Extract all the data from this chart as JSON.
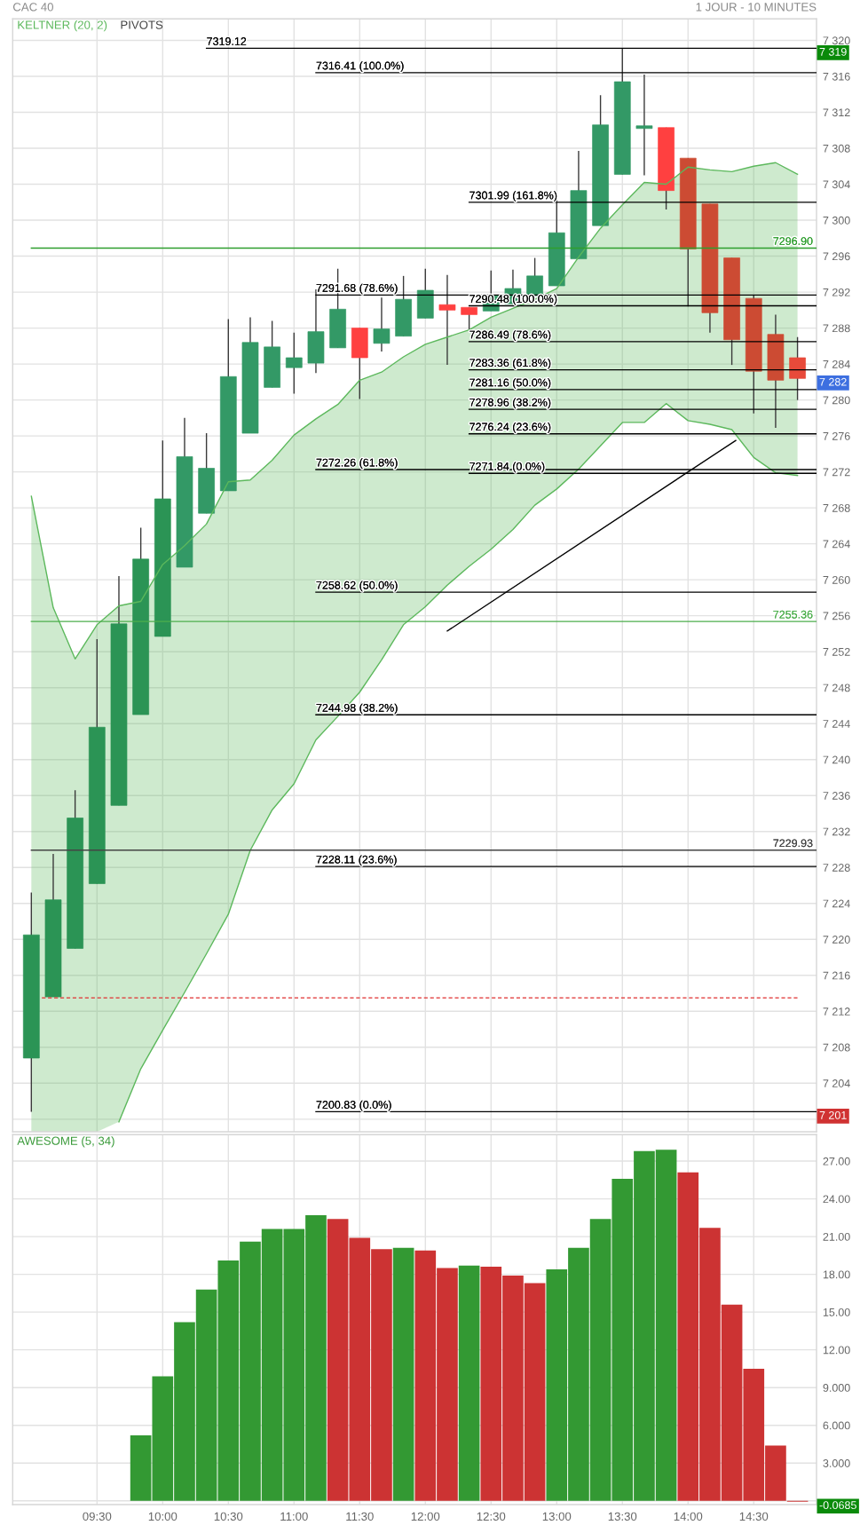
{
  "chart_data": [
    {
      "type": "candlestick",
      "title": "CAC 40",
      "subtitle": "1 JOUR - 10 MINUTES",
      "x": [
        9.0,
        9.1667,
        9.3333,
        9.5,
        9.6667,
        9.8333,
        10.0,
        10.1667,
        10.3333,
        10.5,
        10.6667,
        10.8333,
        11.0,
        11.1667,
        11.3333,
        11.5,
        11.6667,
        11.8333,
        12.0,
        12.1667,
        12.3333,
        12.5,
        12.6667,
        12.8333,
        13.0,
        13.1667,
        13.3333,
        13.5,
        13.6667,
        13.8333,
        14.0,
        14.1667,
        14.3333,
        14.5,
        14.6667,
        14.8333
      ],
      "ohlc": [
        [
          7206.8,
          7225.2,
          7200.83,
          7220.5
        ],
        [
          7213.6,
          7229.5,
          7213.6,
          7224.4
        ],
        [
          7219.0,
          7236.6,
          7219.0,
          7233.5
        ],
        [
          7226.2,
          7253.4,
          7226.2,
          7243.6
        ],
        [
          7234.9,
          7260.4,
          7234.9,
          7255.1
        ],
        [
          7245.0,
          7265.8,
          7245.0,
          7262.3
        ],
        [
          7253.7,
          7275.5,
          7253.7,
          7269.0
        ],
        [
          7261.4,
          7278.0,
          7261.4,
          7273.7
        ],
        [
          7267.4,
          7276.3,
          7267.4,
          7272.4
        ],
        [
          7269.9,
          7289.0,
          7269.9,
          7282.6
        ],
        [
          7276.3,
          7289.2,
          7276.3,
          7286.4
        ],
        [
          7281.4,
          7288.8,
          7281.4,
          7285.9
        ],
        [
          7283.6,
          7287.5,
          7280.7,
          7284.7
        ],
        [
          7284.1,
          7292.3,
          7283.0,
          7287.6
        ],
        [
          7285.8,
          7294.6,
          7285.8,
          7290.1
        ],
        [
          7288.0,
          7288.0,
          7280.1,
          7284.7
        ],
        [
          7286.3,
          7291.4,
          7285.4,
          7287.9
        ],
        [
          7287.1,
          7293.8,
          7287.1,
          7291.2
        ],
        [
          7289.1,
          7294.6,
          7289.1,
          7292.2
        ],
        [
          7290.6,
          7293.9,
          7283.9,
          7290.0
        ],
        [
          7290.3,
          7290.3,
          7287.6,
          7289.5
        ],
        [
          7289.9,
          7294.4,
          7289.9,
          7291.6
        ],
        [
          7290.7,
          7294.5,
          7290.7,
          7292.4
        ],
        [
          7291.6,
          7295.8,
          7291.6,
          7293.8
        ],
        [
          7292.7,
          7302.8,
          7292.7,
          7298.6
        ],
        [
          7295.7,
          7307.7,
          7295.7,
          7303.3
        ],
        [
          7299.4,
          7313.9,
          7299.4,
          7310.6
        ],
        [
          7305.1,
          7319.12,
          7305.1,
          7315.4
        ],
        [
          7310.2,
          7316.2,
          7305.0,
          7310.5
        ],
        [
          7310.3,
          7310.3,
          7301.2,
          7303.3
        ],
        [
          7306.9,
          7306.9,
          7290.4,
          7296.8
        ],
        [
          7301.8,
          7301.8,
          7287.5,
          7289.7
        ],
        [
          7295.8,
          7295.8,
          7283.9,
          7286.7
        ],
        [
          7291.3,
          7291.7,
          7278.5,
          7283.2
        ],
        [
          7287.3,
          7289.5,
          7276.9,
          7282.2
        ],
        [
          7284.7,
          7287.0,
          7280.0,
          7282.4
        ]
      ],
      "colors": [
        "#2b9455",
        "#2b9455",
        "#2b9455",
        "#2b9455",
        "#2b9455",
        "#2b9455",
        "#2b9455",
        "#339966",
        "#339966",
        "#339966",
        "#339966",
        "#339966",
        "#339966",
        "#339966",
        "#339966",
        "#ff4040",
        "#339966",
        "#339966",
        "#339966",
        "#ff4040",
        "#ff4040",
        "#339966",
        "#339966",
        "#339966",
        "#339966",
        "#339966",
        "#339966",
        "#339966",
        "#339966",
        "#ff4040",
        "#cc4b33",
        "#cc4b33",
        "#cc4b33",
        "#cc4b33",
        "#cc4b33",
        "#e84a3a"
      ],
      "series": [
        {
          "name": "KELTNER (20, 2)",
          "type": "line",
          "color": "#5cb85c",
          "values": [
            7269.3,
            7256.9,
            7251.2,
            7255.0,
            7257.1,
            7257.6,
            7261.7,
            7263.8,
            7266.2,
            7270.9,
            7271.1,
            7273.3,
            7276.1,
            7277.9,
            7279.5,
            7282.2,
            7283.1,
            7284.8,
            7286.2,
            7287.0,
            7287.8,
            7289.2,
            7290.2,
            7291.2,
            7292.4,
            7295.9,
            7299.1,
            7301.7,
            7304.2,
            7304.0,
            7305.9,
            7305.6,
            7305.4,
            7306.0,
            7306.4,
            7305.1
          ],
          "upper": [
            7269.3,
            7256.9,
            7251.2,
            7255.0,
            7257.1,
            7257.6,
            7261.7,
            7263.8,
            7266.2,
            7270.9,
            7271.1,
            7273.3,
            7276.1,
            7277.9,
            7279.5,
            7282.2,
            7283.1,
            7284.8,
            7286.2,
            7287.0,
            7287.8,
            7289.2,
            7290.2,
            7291.2,
            7292.4,
            7295.9,
            7299.1,
            7301.7,
            7304.2,
            7304.0,
            7305.9,
            7305.6,
            7305.4,
            7306.0,
            7306.4,
            7305.1
          ],
          "lower": [
            7198.6,
            7198.6,
            7198.6,
            7198.6,
            7199.7,
            7205.6,
            7209.9,
            7214.1,
            7218.4,
            7222.8,
            7229.9,
            7234.4,
            7237.3,
            7242.2,
            7244.8,
            7247.5,
            7251.1,
            7255.0,
            7257.0,
            7259.4,
            7261.5,
            7263.4,
            7265.6,
            7268.3,
            7270.1,
            7272.3,
            7274.9,
            7277.5,
            7277.5,
            7279.6,
            7277.7,
            7277.3,
            7276.7,
            7273.6,
            7271.9,
            7271.6
          ]
        },
        {
          "type": "line",
          "color": "#5cb85c",
          "values": [
            null,
            null,
            null,
            null,
            7199.7,
            7205.6,
            7209.9,
            7214.1,
            7218.4,
            7222.8,
            7229.9,
            7234.4,
            7237.3,
            7242.2,
            7244.8,
            7247.5,
            7251.1,
            7255.0,
            7257.0,
            7259.4,
            7261.5,
            7263.4,
            7265.6,
            7268.3,
            7270.1,
            7272.3,
            7274.9,
            7277.5,
            7277.5,
            7279.6,
            7277.7,
            7277.3,
            7276.7,
            7273.6,
            7271.9,
            7271.6
          ]
        },
        {
          "type": "line",
          "x": [
            9.0,
            14.978
          ],
          "values": [
            7296.9,
            7296.9
          ],
          "color": "#2e9e2e"
        },
        {
          "type": "line",
          "x": [
            9.0,
            14.978
          ],
          "values": [
            7255.36,
            7255.36
          ],
          "color": "#4cae4c"
        },
        {
          "name": "PIVOTS",
          "type": "line",
          "x": [
            9.0,
            14.978
          ],
          "values": [
            7229.93,
            7229.93
          ],
          "color": "#444444"
        },
        {
          "type": "line",
          "x": [
            9.08,
            14.8333
          ],
          "values": [
            7213.5,
            7213.5
          ],
          "color": "#e03030",
          "line_style": "dashed"
        },
        {
          "type": "line",
          "x": [
            10.3333,
            14.978
          ],
          "values": [
            7319.12,
            7319.12
          ],
          "color": "#000000"
        },
        {
          "type": "line",
          "x": [
            11.1667,
            14.978
          ],
          "values": [
            7316.41,
            7316.41
          ],
          "color": "#000000"
        },
        {
          "type": "line",
          "x": [
            11.1667,
            14.978
          ],
          "values": [
            7291.68,
            7291.68
          ],
          "color": "#000000"
        },
        {
          "type": "line",
          "x": [
            11.1667,
            14.978
          ],
          "values": [
            7272.26,
            7272.26
          ],
          "color": "#000000"
        },
        {
          "type": "line",
          "x": [
            11.1667,
            14.978
          ],
          "values": [
            7258.62,
            7258.62
          ],
          "color": "#000000"
        },
        {
          "type": "line",
          "x": [
            11.1667,
            14.978
          ],
          "values": [
            7244.98,
            7244.98
          ],
          "color": "#000000"
        },
        {
          "type": "line",
          "x": [
            11.1667,
            14.978
          ],
          "values": [
            7228.11,
            7228.11
          ],
          "color": "#000000"
        },
        {
          "type": "line",
          "x": [
            11.1667,
            14.978
          ],
          "values": [
            7200.83,
            7200.83
          ],
          "color": "#000000"
        },
        {
          "type": "line",
          "x": [
            12.3333,
            14.978
          ],
          "values": [
            7301.99,
            7301.99
          ],
          "color": "#000000"
        },
        {
          "type": "line",
          "x": [
            12.3333,
            14.978
          ],
          "values": [
            7290.48,
            7290.48
          ],
          "color": "#000000"
        },
        {
          "type": "line",
          "x": [
            12.3333,
            14.978
          ],
          "values": [
            7286.49,
            7286.49
          ],
          "color": "#000000"
        },
        {
          "type": "line",
          "x": [
            12.3333,
            14.978
          ],
          "values": [
            7283.36,
            7283.36
          ],
          "color": "#000000"
        },
        {
          "type": "line",
          "x": [
            12.3333,
            14.978
          ],
          "values": [
            7281.16,
            7281.16
          ],
          "color": "#000000"
        },
        {
          "type": "line",
          "x": [
            12.3333,
            14.978
          ],
          "values": [
            7278.96,
            7278.96
          ],
          "color": "#000000"
        },
        {
          "type": "line",
          "x": [
            12.3333,
            14.978
          ],
          "values": [
            7276.24,
            7276.24
          ],
          "color": "#000000"
        },
        {
          "type": "line",
          "x": [
            12.3333,
            14.978
          ],
          "values": [
            7271.84,
            7271.84
          ],
          "color": "#000000"
        },
        {
          "type": "line",
          "x": [
            12.167,
            14.363
          ],
          "values": [
            7254.3,
            7275.5
          ],
          "color": "#000000"
        }
      ],
      "annotations": [
        {
          "text": "7319.12",
          "x": 10.3333,
          "y": 7319.12
        },
        {
          "text": "7316.41 (100.0%)",
          "x": 11.1667,
          "y": 7316.41
        },
        {
          "text": "7291.68 (78.6%)",
          "x": 11.1667,
          "y": 7291.68
        },
        {
          "text": "7272.26 (61.8%)",
          "x": 11.1667,
          "y": 7272.26
        },
        {
          "text": "7258.62 (50.0%)",
          "x": 11.1667,
          "y": 7258.62
        },
        {
          "text": "7244.98 (38.2%)",
          "x": 11.1667,
          "y": 7244.98
        },
        {
          "text": "7228.11 (23.6%)",
          "x": 11.1667,
          "y": 7228.11
        },
        {
          "text": "7200.83 (0.0%)",
          "x": 11.1667,
          "y": 7200.83
        },
        {
          "text": "7301.99 (161.8%)",
          "x": 12.3333,
          "y": 7301.99
        },
        {
          "text": "7290.48 (100.0%)",
          "x": 12.3333,
          "y": 7290.48
        },
        {
          "text": "7286.49 (78.6%)",
          "x": 12.3333,
          "y": 7286.49
        },
        {
          "text": "7283.36 (61.8%)",
          "x": 12.3333,
          "y": 7283.36
        },
        {
          "text": "7281.16 (50.0%)",
          "x": 12.3333,
          "y": 7281.16
        },
        {
          "text": "7278.96 (38.2%)",
          "x": 12.3333,
          "y": 7278.96
        },
        {
          "text": "7276.24 (23.6%)",
          "x": 12.3333,
          "y": 7276.24
        },
        {
          "text": "7271.84 (0.0%)",
          "x": 12.3333,
          "y": 7271.84
        },
        {
          "text": "7296.90",
          "x": 14.978,
          "y": 7296.9
        },
        {
          "text": "7255.36",
          "x": 14.978,
          "y": 7255.36
        },
        {
          "text": "7229.93",
          "x": 14.978,
          "y": 7229.93
        },
        {
          "text": "7 319",
          "x": 14.8333,
          "y": 7319.12
        },
        {
          "text": "7 282",
          "x": 14.8333,
          "y": 7282.4
        },
        {
          "text": "7 201",
          "x": 14.8333,
          "y": 7200.83
        }
      ],
      "xlim": [
        8.858,
        14.978
      ],
      "ylim": [
        7198.6,
        7322.4
      ],
      "xticks": [
        {
          "value": 9.5,
          "label": null
        },
        {
          "value": 10,
          "label": null
        },
        {
          "value": 10.5,
          "label": null
        },
        {
          "value": 11,
          "label": null
        },
        {
          "value": 11.5,
          "label": null
        },
        {
          "value": 12,
          "label": null
        },
        {
          "value": 12.5,
          "label": null
        },
        {
          "value": 13,
          "label": null
        },
        {
          "value": 13.5,
          "label": null
        },
        {
          "value": 14,
          "label": null
        },
        {
          "value": 14.5,
          "label": null
        }
      ],
      "yticks": [
        {
          "value": 7200,
          "label": null
        },
        {
          "value": 7204,
          "label": "7 204"
        },
        {
          "value": 7208,
          "label": "7 208"
        },
        {
          "value": 7212,
          "label": "7 212"
        },
        {
          "value": 7216,
          "label": "7 216"
        },
        {
          "value": 7220,
          "label": "7 220"
        },
        {
          "value": 7224,
          "label": "7 224"
        },
        {
          "value": 7228,
          "label": "7 228"
        },
        {
          "value": 7232,
          "label": "7 232"
        },
        {
          "value": 7236,
          "label": "7 236"
        },
        {
          "value": 7240,
          "label": "7 240"
        },
        {
          "value": 7244,
          "label": "7 244"
        },
        {
          "value": 7248,
          "label": "7 248"
        },
        {
          "value": 7252,
          "label": "7 252"
        },
        {
          "value": 7256,
          "label": "7 256"
        },
        {
          "value": 7260,
          "label": "7 260"
        },
        {
          "value": 7264,
          "label": "7 264"
        },
        {
          "value": 7268,
          "label": "7 268"
        },
        {
          "value": 7272,
          "label": "7 272"
        },
        {
          "value": 7276,
          "label": "7 276"
        },
        {
          "value": 7280,
          "label": "7 280"
        },
        {
          "value": 7284,
          "label": "7 284"
        },
        {
          "value": 7288,
          "label": "7 288"
        },
        {
          "value": 7292,
          "label": "7 292"
        },
        {
          "value": 7296,
          "label": "7 296"
        },
        {
          "value": 7300,
          "label": "7 300"
        },
        {
          "value": 7304,
          "label": "7 304"
        },
        {
          "value": 7308,
          "label": "7 308"
        },
        {
          "value": 7312,
          "label": "7 312"
        },
        {
          "value": 7316,
          "label": "7 316"
        },
        {
          "value": 7320,
          "label": "7 320"
        }
      ],
      "grid": true,
      "tick_labels": "y"
    },
    {
      "type": "bar",
      "title": "AWESOME (5, 34)",
      "x": [
        9.8333,
        10.0,
        10.1667,
        10.3333,
        10.5,
        10.6667,
        10.8333,
        11.0,
        11.1667,
        11.3333,
        11.5,
        11.6667,
        11.8333,
        12.0,
        12.1667,
        12.3333,
        12.5,
        12.6667,
        12.8333,
        13.0,
        13.1667,
        13.3333,
        13.5,
        13.6667,
        13.8333,
        14.0,
        14.1667,
        14.3333,
        14.5,
        14.6667,
        14.8333
      ],
      "values": [
        5.2,
        9.9,
        14.2,
        16.8,
        19.1,
        20.6,
        21.6,
        21.6,
        22.7,
        22.4,
        20.9,
        20.0,
        20.1,
        19.9,
        18.5,
        18.7,
        18.6,
        17.9,
        17.3,
        18.4,
        20.1,
        22.4,
        25.6,
        27.8,
        27.9,
        26.1,
        21.7,
        15.6,
        10.5,
        4.4,
        -0.0685
      ],
      "colors": [
        "#339933",
        "#339933",
        "#339933",
        "#339933",
        "#339933",
        "#339933",
        "#339933",
        "#339933",
        "#339933",
        "#cc3333",
        "#cc3333",
        "#cc3333",
        "#339933",
        "#cc3333",
        "#cc3333",
        "#339933",
        "#cc3333",
        "#cc3333",
        "#cc3333",
        "#339933",
        "#339933",
        "#339933",
        "#339933",
        "#339933",
        "#339933",
        "#cc3333",
        "#cc3333",
        "#cc3333",
        "#cc3333",
        "#cc3333",
        "#cc3333"
      ],
      "annotations": [
        {
          "text": "-0.0685",
          "x": 14.8333,
          "y": -0.0685
        }
      ],
      "xlim": [
        8.858,
        14.978
      ],
      "ylim": [
        -0.3,
        29.1
      ],
      "xticks": [
        {
          "value": 9.5,
          "label": "09:30"
        },
        {
          "value": 10,
          "label": "10:00"
        },
        {
          "value": 10.5,
          "label": "10:30"
        },
        {
          "value": 11,
          "label": "11:00"
        },
        {
          "value": 11.5,
          "label": "11:30"
        },
        {
          "value": 12,
          "label": "12:00"
        },
        {
          "value": 12.5,
          "label": "12:30"
        },
        {
          "value": 13,
          "label": "13:00"
        },
        {
          "value": 13.5,
          "label": "13:30"
        },
        {
          "value": 14,
          "label": "14:00"
        },
        {
          "value": 14.5,
          "label": "14:30"
        }
      ],
      "yticks": [
        {
          "value": 0,
          "label": null
        },
        {
          "value": 3,
          "label": "3.000"
        },
        {
          "value": 6,
          "label": "6.000"
        },
        {
          "value": 9,
          "label": "9.000"
        },
        {
          "value": 12,
          "label": "12.00"
        },
        {
          "value": 15,
          "label": "15.00"
        },
        {
          "value": 18,
          "label": "18.00"
        },
        {
          "value": 21,
          "label": "21.00"
        },
        {
          "value": 24,
          "label": "24.00"
        },
        {
          "value": 27,
          "label": "27.00"
        }
      ],
      "grid": true
    }
  ]
}
